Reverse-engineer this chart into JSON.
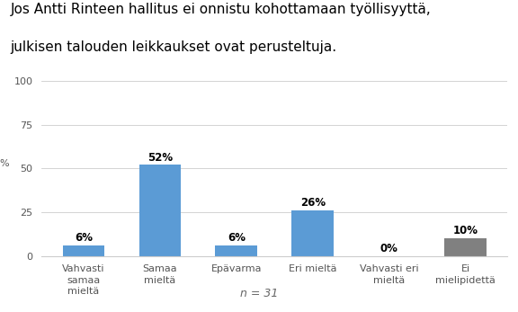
{
  "title_line1": "Jos Antti Rinteen hallitus ei onnistu kohottamaan työllisyyttä,",
  "title_line2": "julkisen talouden leikkaukset ovat perusteltuja.",
  "categories": [
    "Vahvasti\nsamaa\nmieltä",
    "Samaa\nmieltä",
    "Epävarma",
    "Eri mieltä",
    "Vahvasti eri\nmieltä",
    "Ei\nmielipidettä"
  ],
  "values": [
    6,
    52,
    6,
    26,
    0,
    10
  ],
  "bar_colors": [
    "#5b9bd5",
    "#5b9bd5",
    "#5b9bd5",
    "#5b9bd5",
    "#5b9bd5",
    "#808080"
  ],
  "ylabel": "%",
  "ylim": [
    0,
    100
  ],
  "yticks": [
    0,
    25,
    50,
    75,
    100
  ],
  "n_label": "n = 31",
  "background_color": "#ffffff",
  "title_fontsize": 11,
  "bar_label_fontsize": 8.5,
  "tick_fontsize": 8,
  "ylabel_fontsize": 8
}
